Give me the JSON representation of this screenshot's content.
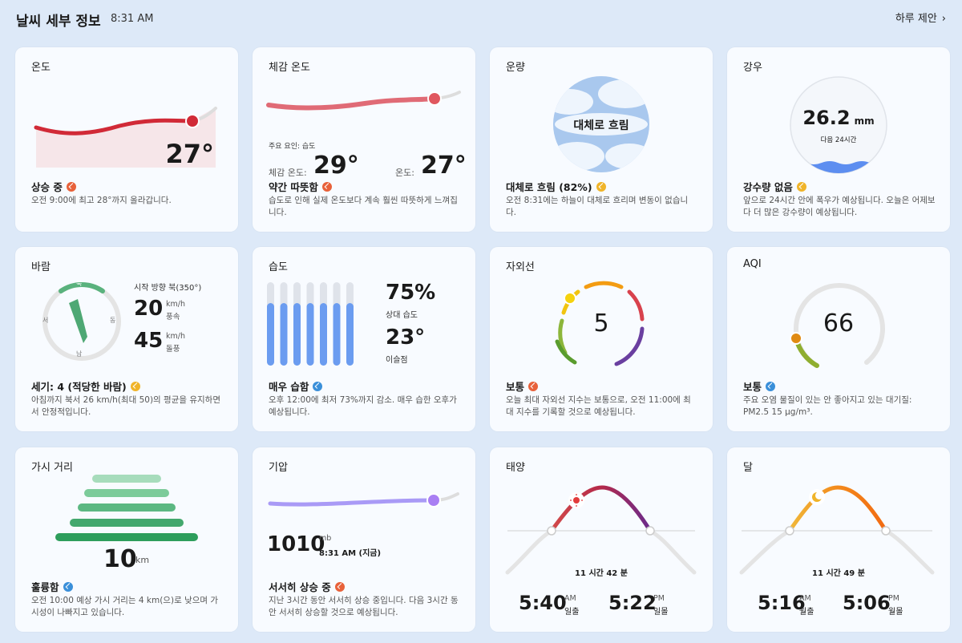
{
  "header": {
    "title": "날씨 세부 정보",
    "time": "8:31 AM",
    "day_link": "하루 제안"
  },
  "temperature": {
    "title": "온도",
    "value": "27°",
    "summary": "상승 중",
    "desc": "오전 9:00에 최고 28°까지 올라갑니다."
  },
  "feels_like": {
    "title": "체감 온도",
    "factor": "주요 요인: 습도",
    "feels_label": "체감 온도:",
    "feels_value": "29°",
    "temp_label": "온도:",
    "temp_value": "27°",
    "summary": "약간 따뜻함",
    "desc": "습도로 인해 실제 온도보다 계속 훨씬 따뜻하게 느껴집니다."
  },
  "cloud": {
    "title": "운량",
    "center_text": "대체로 흐림",
    "summary": "대체로 흐림 (82%)",
    "percent": 82,
    "desc": "오전 8:31에는 하늘이 대체로 흐리며 변동이 없습니다."
  },
  "rain": {
    "title": "강우",
    "value": "26.2",
    "unit": "mm",
    "sub": "다음 24시간",
    "summary": "강수량 없음",
    "desc": "앞으로 24시간 안에 폭우가 예상됩니다. 오늘은 어제보다 더 많은 강수량이 예상됩니다."
  },
  "wind": {
    "title": "바람",
    "dir_text": "시작 방향 북(350°)",
    "direction_deg": 350,
    "n": "북",
    "e": "동",
    "s": "남",
    "w": "서",
    "speed": "20",
    "speed_unit": "km/h",
    "speed_label": "풍속",
    "gust": "45",
    "gust_unit": "km/h",
    "gust_label": "돌풍",
    "summary": "세기: 4 (적당한 바람)",
    "desc": "아침까지 북서 26 km/h(최대 50)의 평균을 유지하면서 안정적입니다."
  },
  "humidity": {
    "title": "습도",
    "value": "75%",
    "label": "상대 습도",
    "dew": "23°",
    "dew_label": "이슬점",
    "bar_levels": [
      0.75,
      0.75,
      0.75,
      0.75,
      0.75,
      0.75,
      0.75
    ],
    "summary": "매우 습함",
    "desc": "오후 12:00에 최저 73%까지 감소. 매우 습한 오후가 예상됩니다."
  },
  "uv": {
    "title": "자외선",
    "value": "5",
    "summary": "보통",
    "desc": "오늘 최대 자외선 지수는 보통으로, 오전 11:00에 최대 지수를 기록할 것으로 예상됩니다."
  },
  "aqi": {
    "title": "AQI",
    "value": "66",
    "summary": "보통",
    "desc": "주요 오염 물질이 있는 안 좋아지고 있는 대기질: PM2.5 15 μg/m³."
  },
  "visibility": {
    "title": "가시 거리",
    "value": "10",
    "unit": "km",
    "summary": "훌륭함",
    "desc": "오전 10:00 예상 가시 거리는 4 km(으)로 낮으며 가시성이 나빠지고 있습니다."
  },
  "pressure": {
    "title": "기압",
    "value": "1010",
    "unit": "mb",
    "time": "8:31 AM (지금)",
    "summary": "서서히 상승 중",
    "desc": "지난 3시간 동안 서서히 상승 중입니다. 다음 3시간 동안 서서히 상승할 것으로 예상됩니다."
  },
  "sun": {
    "title": "태양",
    "duration": "11 시간 42 분",
    "rise": "5:40",
    "rise_ampm": "AM",
    "rise_label": "일출",
    "set": "5:22",
    "set_ampm": "PM",
    "set_label": "일몰"
  },
  "moon": {
    "title": "달",
    "duration": "11 시간 49 분",
    "rise": "5:16",
    "rise_ampm": "AM",
    "rise_label": "월출",
    "set": "5:06",
    "set_ampm": "PM",
    "set_label": "월몰"
  },
  "colors": {
    "accent_red": "#d12a37",
    "humidity_blue": "#6b9cf0",
    "pressure_purple": "#a98cf5",
    "visibility_green": "#3aa36a"
  }
}
